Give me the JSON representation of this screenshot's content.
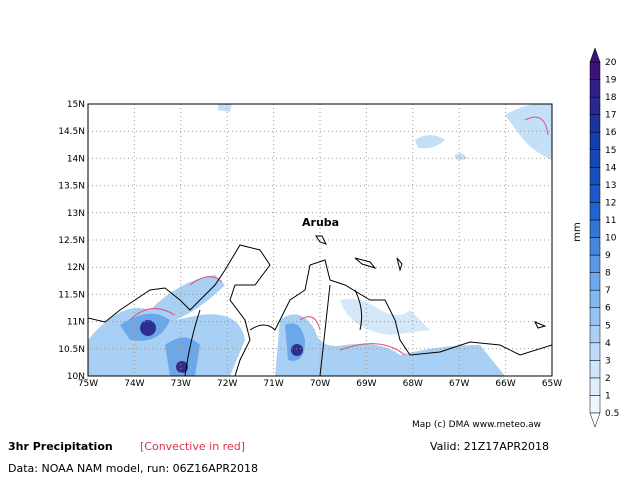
{
  "map": {
    "place_label": "Aruba",
    "lat_labels": [
      "10N",
      "10.5N",
      "11N",
      "11.5N",
      "12N",
      "12.5N",
      "13N",
      "13.5N",
      "14N",
      "14.5N",
      "15N"
    ],
    "lon_labels": [
      "75W",
      "74W",
      "73W",
      "72W",
      "71W",
      "70W",
      "69W",
      "68W",
      "67W",
      "66W",
      "65W"
    ]
  },
  "colorbar": {
    "unit": "mm",
    "labels": [
      "0.5",
      "1",
      "2",
      "3",
      "4",
      "5",
      "6",
      "7",
      "8",
      "9",
      "10",
      "11",
      "12",
      "13",
      "14",
      "15",
      "16",
      "17",
      "18",
      "19",
      "20"
    ]
  },
  "footer": {
    "title": "3hr Precipitation",
    "convective": "[Convective in red]",
    "valid": "Valid: 21Z17APR2018",
    "data": "Data: NOAA NAM model, run: 06Z16APR2018",
    "credit": "Map (c) DMA www.meteo.aw"
  }
}
